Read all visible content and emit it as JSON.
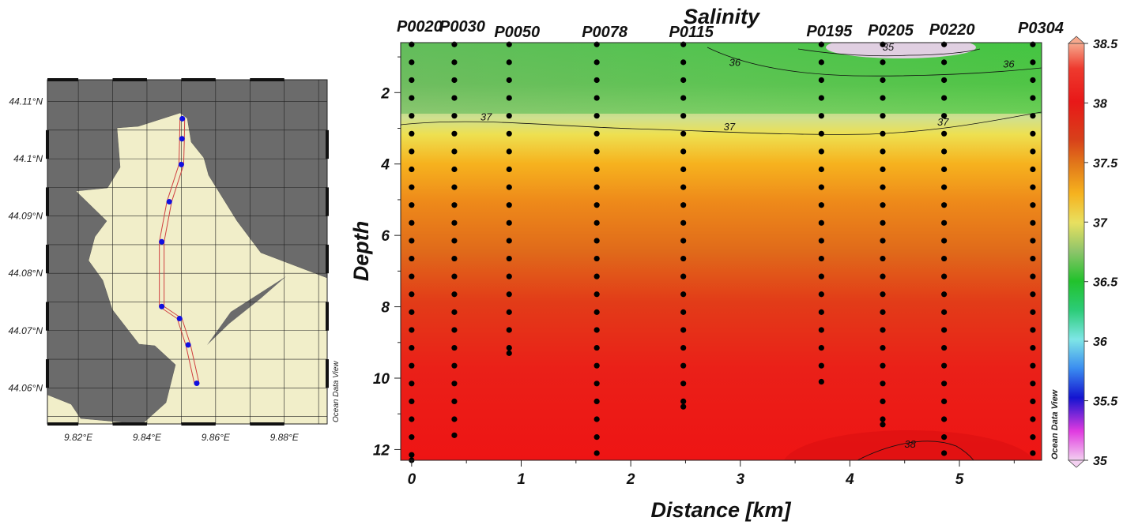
{
  "map": {
    "lat_ticks": [
      "44.11°N",
      "44.1°N",
      "44.09°N",
      "44.08°N",
      "44.07°N",
      "44.06°N"
    ],
    "lat_values": [
      44.11,
      44.1,
      44.09,
      44.08,
      44.07,
      44.06
    ],
    "lon_ticks": [
      "9.82°E",
      "9.84°E",
      "9.86°E",
      "9.88°E"
    ],
    "lon_values": [
      9.82,
      9.84,
      9.86,
      9.88
    ],
    "lon_range": [
      9.811,
      9.8925
    ],
    "lat_range": [
      44.0537,
      44.1138
    ],
    "watermark": "Ocean Data View",
    "colors": {
      "water": "#6b6b6b",
      "land": "#f1eec9",
      "station": "#1010e0",
      "track": "#d04040"
    },
    "stations": [
      {
        "lon": 9.8503,
        "lat": 44.107
      },
      {
        "lon": 9.8502,
        "lat": 44.1035
      },
      {
        "lon": 9.85,
        "lat": 44.099
      },
      {
        "lon": 9.8465,
        "lat": 44.0925
      },
      {
        "lon": 9.8443,
        "lat": 44.0855
      },
      {
        "lon": 9.8443,
        "lat": 44.0742
      },
      {
        "lon": 9.8495,
        "lat": 44.0721
      },
      {
        "lon": 9.852,
        "lat": 44.0675
      },
      {
        "lon": 9.8545,
        "lat": 44.0608
      }
    ]
  },
  "chart_data": {
    "type": "heatmap",
    "title": "Salinity",
    "xlabel": "Distance [km]",
    "ylabel": "Depth",
    "xlim": [
      -0.1,
      5.75
    ],
    "ylim": [
      12.3,
      0.6
    ],
    "x_ticks": [
      "0",
      "1",
      "2",
      "3",
      "4",
      "5"
    ],
    "x_tick_values": [
      0,
      1,
      2,
      3,
      4,
      5
    ],
    "y_ticks": [
      "2",
      "4",
      "6",
      "8",
      "10",
      "12"
    ],
    "y_tick_values": [
      2,
      4,
      6,
      8,
      10,
      12
    ],
    "colorbar": {
      "min": 35,
      "max": 38.5,
      "ticks": [
        "38.5",
        "38",
        "37.5",
        "37",
        "36.5",
        "36",
        "35.5",
        "35"
      ],
      "tick_values": [
        38.5,
        38,
        37.5,
        37,
        36.5,
        36,
        35.5,
        35
      ],
      "watermark": "Ocean Data View"
    },
    "contour_labels": [
      {
        "text": "37",
        "x": 0.68,
        "y": 2.78
      },
      {
        "text": "37",
        "x": 2.9,
        "y": 3.05
      },
      {
        "text": "37",
        "x": 4.85,
        "y": 2.92
      },
      {
        "text": "36",
        "x": 2.95,
        "y": 1.25
      },
      {
        "text": "36",
        "x": 5.45,
        "y": 1.3
      },
      {
        "text": "35",
        "x": 4.35,
        "y": 0.82
      },
      {
        "text": "38",
        "x": 4.55,
        "y": 11.95
      }
    ],
    "stations": [
      {
        "name": "P0020",
        "x": 0.0,
        "depth_max": 12.3
      },
      {
        "name": "P0030",
        "x": 0.39,
        "depth_max": 11.6
      },
      {
        "name": "P0050",
        "x": 0.89,
        "depth_max": 9.3
      },
      {
        "name": "P0078",
        "x": 1.69,
        "depth_max": 12.1
      },
      {
        "name": "P0115",
        "x": 2.48,
        "depth_max": 10.8
      },
      {
        "name": "P0195",
        "x": 3.74,
        "depth_max": 10.1
      },
      {
        "name": "P0205",
        "x": 4.3,
        "depth_max": 11.3
      },
      {
        "name": "P0220",
        "x": 4.86,
        "depth_max": 12.1
      },
      {
        "name": "P0304",
        "x": 5.67,
        "depth_max": 12.1
      }
    ],
    "watermark": "Ocean Data View"
  }
}
